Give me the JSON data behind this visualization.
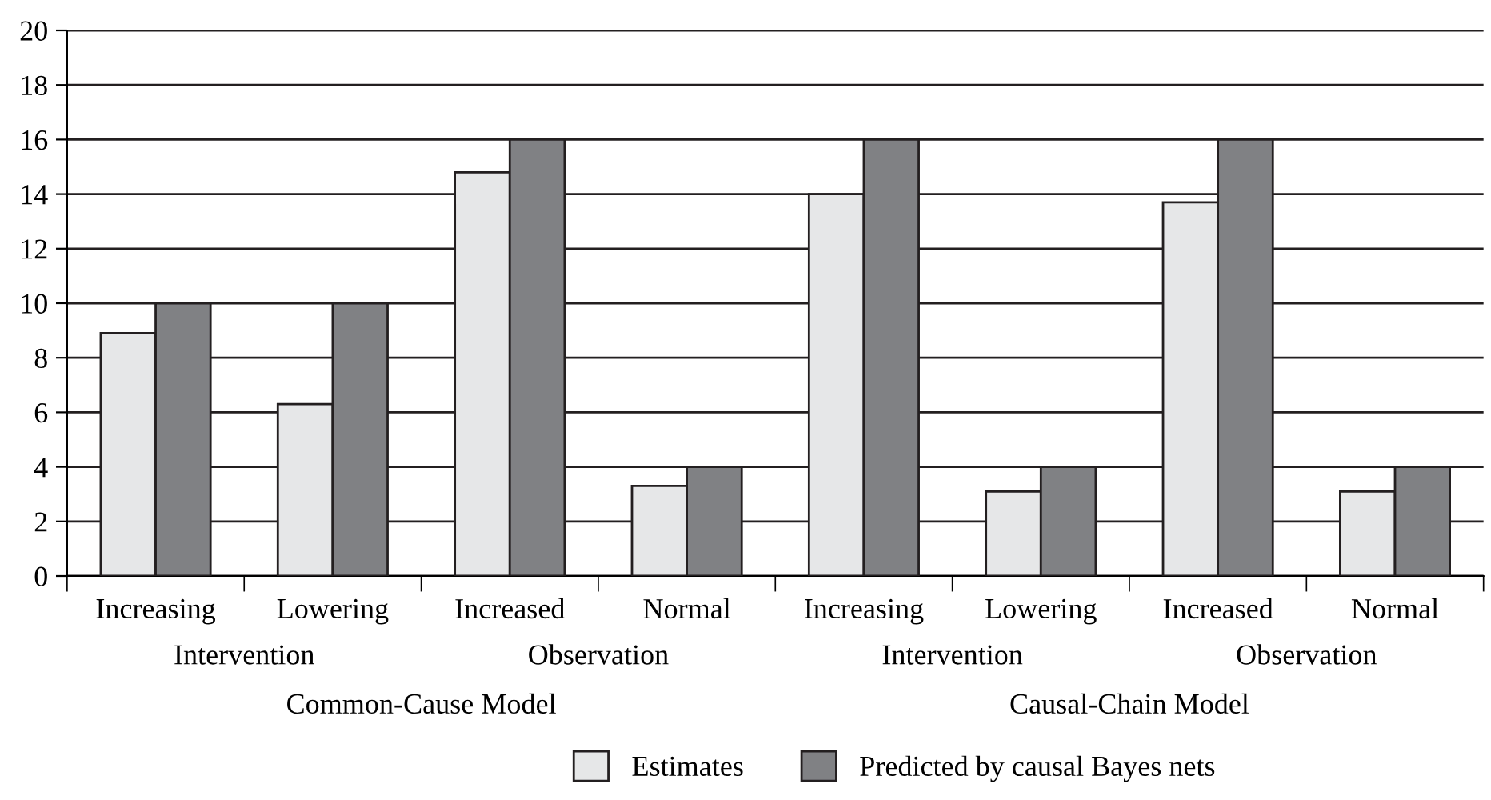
{
  "chart_data": {
    "type": "bar",
    "categories": [
      "Increasing",
      "Lowering",
      "Increased",
      "Normal",
      "Increasing",
      "Lowering",
      "Increased",
      "Normal"
    ],
    "series": [
      {
        "name": "Estimates",
        "color": "#e6e7e8",
        "values": [
          8.9,
          6.3,
          14.8,
          3.3,
          14.0,
          3.1,
          13.7,
          3.1
        ]
      },
      {
        "name": "Predicted by causal Bayes nets",
        "color": "#808184",
        "values": [
          10,
          10,
          16,
          4,
          16,
          4,
          16,
          4
        ]
      }
    ],
    "annotations": [
      "Intervention",
      "Observation",
      "Common-Cause Model",
      "Intervention",
      "Observation",
      "Causal-Chain Model"
    ],
    "ylim": [
      0,
      20
    ],
    "yticks": [
      0,
      2,
      4,
      6,
      8,
      10,
      12,
      14,
      16,
      18,
      20
    ],
    "grid": "y",
    "legend": "bottom"
  }
}
